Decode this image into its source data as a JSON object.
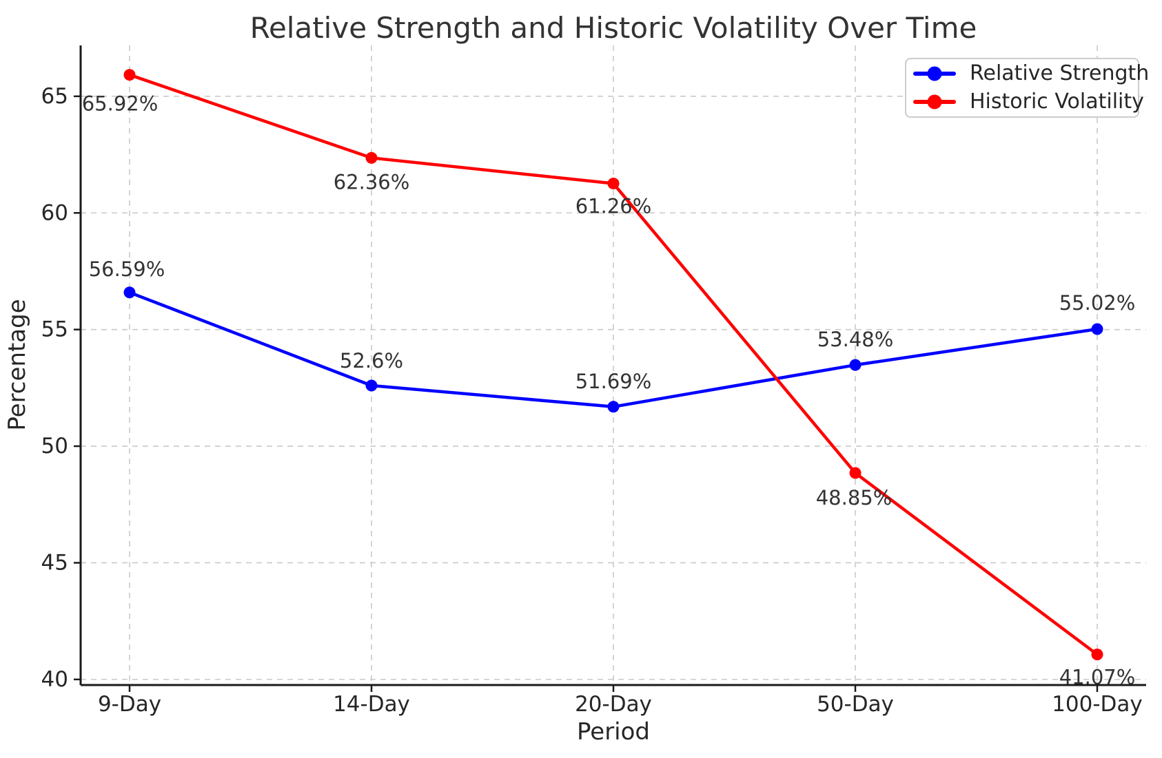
{
  "chart_data": {
    "type": "line",
    "title": "Relative Strength and Historic Volatility Over Time",
    "xlabel": "Period",
    "ylabel": "Percentage",
    "categories": [
      "9-Day",
      "14-Day",
      "20-Day",
      "50-Day",
      "100-Day"
    ],
    "y_ticks": [
      40,
      45,
      50,
      55,
      60,
      65
    ],
    "ylim": [
      39.76,
      67.18
    ],
    "grid": true,
    "grid_style": "dashed",
    "legend_position": "upper right",
    "colors": {
      "grid": "#c9c9c9",
      "spine": "#1a1a1a",
      "background": "#ffffff"
    },
    "series": [
      {
        "name": "Relative Strength",
        "color": "#0000ff",
        "values": [
          56.59,
          52.6,
          51.69,
          53.48,
          55.02
        ],
        "point_labels": [
          "56.59%",
          "52.6%",
          "51.69%",
          "53.48%",
          "55.02%"
        ],
        "label_offsets": [
          [
            -4,
            -34
          ],
          [
            0,
            -36
          ],
          [
            0,
            -37
          ],
          [
            0,
            -37
          ],
          [
            0,
            -38
          ]
        ]
      },
      {
        "name": "Historic Volatility",
        "color": "#ff0000",
        "values": [
          65.92,
          62.36,
          61.26,
          48.85,
          41.07
        ],
        "point_labels": [
          "65.92%",
          "62.36%",
          "61.26%",
          "48.85%",
          "41.07%"
        ],
        "label_offsets": [
          [
            -14,
            42
          ],
          [
            0,
            35
          ],
          [
            0,
            33
          ],
          [
            -2,
            36
          ],
          [
            0,
            33
          ]
        ]
      }
    ]
  }
}
